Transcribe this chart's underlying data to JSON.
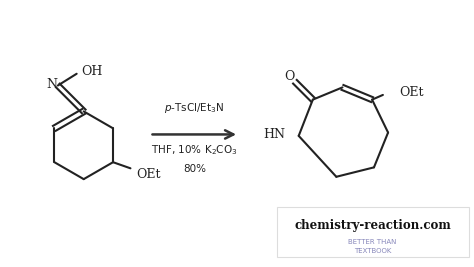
{
  "bg_color": "#ffffff",
  "arrow_color": "#333333",
  "structure_color": "#222222",
  "reagent_line1": "p-TsCl/Et₃N",
  "reagent_line2": "THF, 10% K₂CO₃",
  "reagent_line3": "80%",
  "watermark_main": "chemistry-reaction.com",
  "watermark_sub1": "BETTER THAN",
  "watermark_sub2": "TEXTBOOK",
  "watermark_main_color": "#111111",
  "watermark_sub_color": "#8888bb",
  "watermark_box_color": "#dddddd",
  "figsize": [
    4.74,
    2.67
  ],
  "dpi": 100
}
